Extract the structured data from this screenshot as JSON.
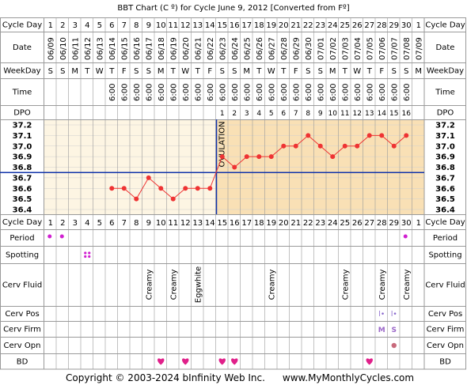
{
  "header": {
    "title": "BBT Chart (C º) for Cycle June 9, 2012  [Converted from Fº]",
    "copyright": "Copyright © 2003-2024 bInfinity Web Inc.",
    "site": "www.MyMonthlyCycles.com"
  },
  "row_labels": {
    "cycle_day": "Cycle Day",
    "date": "Date",
    "weekday": "WeekDay",
    "time": "Time",
    "dpo": "DPO",
    "period": "Period",
    "spotting": "Spotting",
    "cerv_fluid": "Cerv Fluid",
    "cerv_pos": "Cerv Pos",
    "cerv_firm": "Cerv Firm",
    "cerv_opn": "Cerv Opn",
    "bd": "BD"
  },
  "colors": {
    "grid": "#9a9a9a",
    "pre_ovulation_bg": "#fdf5e3",
    "post_ovulation_bg": "#f9e0b5",
    "temp_line": "#ee3333",
    "ovulation_line": "#1133aa",
    "heart": "#e0208a",
    "period_dot": "#d020d0",
    "opn_dot": "#c86a7c"
  },
  "chart_data": {
    "type": "line",
    "title": "BBT Chart (C º) for Cycle June 9, 2012  [Converted from Fº]",
    "cycle_days": [
      "1",
      "2",
      "3",
      "4",
      "5",
      "6",
      "7",
      "8",
      "9",
      "10",
      "11",
      "12",
      "13",
      "14",
      "15",
      "16",
      "17",
      "18",
      "19",
      "20",
      "21",
      "22",
      "23",
      "24",
      "25",
      "26",
      "27",
      "28",
      "29",
      "30",
      "1"
    ],
    "dates": [
      "06/09",
      "06/10",
      "06/11",
      "06/12",
      "06/13",
      "06/14",
      "06/15",
      "06/16",
      "06/17",
      "06/18",
      "06/19",
      "06/20",
      "06/21",
      "06/22",
      "06/23",
      "06/24",
      "06/25",
      "06/26",
      "06/27",
      "06/28",
      "06/29",
      "06/30",
      "07/01",
      "07/02",
      "07/03",
      "07/04",
      "07/05",
      "07/06",
      "07/07",
      "07/08",
      "07/09"
    ],
    "weekdays": [
      "S",
      "S",
      "M",
      "T",
      "W",
      "T",
      "F",
      "S",
      "S",
      "M",
      "T",
      "W",
      "T",
      "F",
      "S",
      "S",
      "M",
      "T",
      "W",
      "T",
      "F",
      "S",
      "S",
      "M",
      "T",
      "W",
      "T",
      "F",
      "S",
      "S",
      "M"
    ],
    "times": [
      "",
      "",
      "",
      "",
      "",
      "6:00",
      "6:00",
      "6:00",
      "6:00",
      "6:00",
      "6:00",
      "6:00",
      "6:00",
      "6:00",
      "6:00",
      "6:00",
      "6:00",
      "6:00",
      "6:00",
      "6:00",
      "6:00",
      "6:00",
      "6:00",
      "6:00",
      "6:00",
      "6:00",
      "6:00",
      "6:00",
      "6:00",
      "6:00",
      ""
    ],
    "dpo": [
      "",
      "",
      "",
      "",
      "",
      "",
      "",
      "",
      "",
      "",
      "",
      "",
      "",
      "",
      "1",
      "2",
      "3",
      "4",
      "5",
      "6",
      "7",
      "8",
      "9",
      "10",
      "11",
      "12",
      "13",
      "14",
      "15",
      "16",
      ""
    ],
    "temperatures": [
      null,
      null,
      null,
      null,
      null,
      36.6,
      36.6,
      36.5,
      36.7,
      36.6,
      36.5,
      36.6,
      36.6,
      36.6,
      36.9,
      36.8,
      36.9,
      36.9,
      36.9,
      37.0,
      37.0,
      37.1,
      37.0,
      36.9,
      37.0,
      37.0,
      37.1,
      37.1,
      37.0,
      37.1,
      null
    ],
    "y_ticks": [
      "37.2",
      "37.1",
      "37.0",
      "36.9",
      "36.8",
      "36.7",
      "36.6",
      "36.5",
      "36.4"
    ],
    "ylim": [
      36.4,
      37.2
    ],
    "coverline": 36.75,
    "ovulation_day": 14,
    "ovulation_label": "OVULATION",
    "period": [
      true,
      true,
      false,
      false,
      false,
      false,
      false,
      false,
      false,
      false,
      false,
      false,
      false,
      false,
      false,
      false,
      false,
      false,
      false,
      false,
      false,
      false,
      false,
      false,
      false,
      false,
      false,
      false,
      false,
      true,
      false
    ],
    "spotting": [
      false,
      false,
      false,
      true,
      false,
      false,
      false,
      false,
      false,
      false,
      false,
      false,
      false,
      false,
      false,
      false,
      false,
      false,
      false,
      false,
      false,
      false,
      false,
      false,
      false,
      false,
      false,
      false,
      false,
      false,
      false
    ],
    "cerv_fluid": [
      "",
      "",
      "",
      "",
      "",
      "",
      "",
      "",
      "Creamy",
      "",
      "Creamy",
      "",
      "Eggwhite",
      "",
      "",
      "",
      "",
      "",
      "Creamy",
      "",
      "",
      "",
      "",
      "",
      "Creamy",
      "",
      "",
      "Creamy",
      "",
      "Creamy",
      ""
    ],
    "cerv_pos": [
      "",
      "",
      "",
      "",
      "",
      "",
      "",
      "",
      "",
      "",
      "",
      "",
      "",
      "",
      "",
      "",
      "",
      "",
      "",
      "",
      "",
      "",
      "",
      "",
      "",
      "",
      "",
      "l•",
      "l•",
      "",
      ""
    ],
    "cerv_firm": [
      "",
      "",
      "",
      "",
      "",
      "",
      "",
      "",
      "",
      "",
      "",
      "",
      "",
      "",
      "",
      "",
      "",
      "",
      "",
      "",
      "",
      "",
      "",
      "",
      "",
      "",
      "",
      "M",
      "S",
      "",
      ""
    ],
    "cerv_opn": [
      false,
      false,
      false,
      false,
      false,
      false,
      false,
      false,
      false,
      false,
      false,
      false,
      false,
      false,
      false,
      false,
      false,
      false,
      false,
      false,
      false,
      false,
      false,
      false,
      false,
      false,
      false,
      false,
      true,
      false,
      false
    ],
    "bd": [
      false,
      false,
      false,
      false,
      false,
      false,
      false,
      false,
      false,
      true,
      false,
      true,
      false,
      false,
      true,
      true,
      false,
      false,
      false,
      false,
      false,
      false,
      false,
      false,
      false,
      false,
      true,
      false,
      false,
      false,
      false
    ],
    "grid": true
  }
}
